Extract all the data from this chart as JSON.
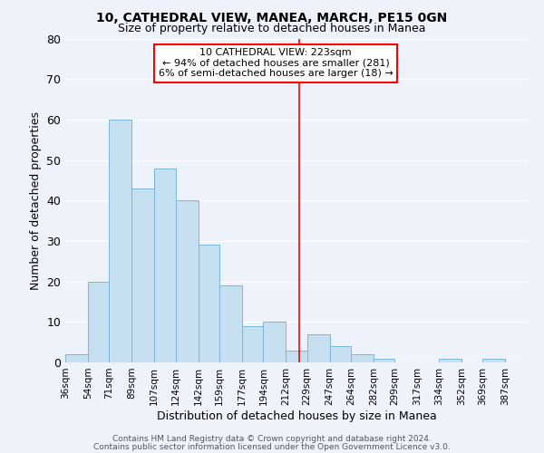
{
  "title": "10, CATHEDRAL VIEW, MANEA, MARCH, PE15 0GN",
  "subtitle": "Size of property relative to detached houses in Manea",
  "xlabel": "Distribution of detached houses by size in Manea",
  "ylabel": "Number of detached properties",
  "bar_color": "#c5dff0",
  "bar_edge_color": "#7ab8d8",
  "background_color": "#eef2fa",
  "grid_color": "white",
  "bin_labels": [
    "36sqm",
    "54sqm",
    "71sqm",
    "89sqm",
    "107sqm",
    "124sqm",
    "142sqm",
    "159sqm",
    "177sqm",
    "194sqm",
    "212sqm",
    "229sqm",
    "247sqm",
    "264sqm",
    "282sqm",
    "299sqm",
    "317sqm",
    "334sqm",
    "352sqm",
    "369sqm",
    "387sqm"
  ],
  "bar_heights": [
    2,
    20,
    60,
    43,
    48,
    40,
    29,
    19,
    9,
    10,
    3,
    7,
    4,
    2,
    1,
    0,
    0,
    1,
    0,
    1,
    0
  ],
  "bin_edges": [
    36,
    54,
    71,
    89,
    107,
    124,
    142,
    159,
    177,
    194,
    212,
    229,
    247,
    264,
    282,
    299,
    317,
    334,
    352,
    369,
    387,
    405
  ],
  "reference_line_x": 223,
  "reference_line_color": "red",
  "ylim": [
    0,
    80
  ],
  "yticks": [
    0,
    10,
    20,
    30,
    40,
    50,
    60,
    70,
    80
  ],
  "annotation_title": "10 CATHEDRAL VIEW: 223sqm",
  "annotation_line1": "← 94% of detached houses are smaller (281)",
  "annotation_line2": "6% of semi-detached houses are larger (18) →",
  "footer_line1": "Contains HM Land Registry data © Crown copyright and database right 2024.",
  "footer_line2": "Contains public sector information licensed under the Open Government Licence v3.0."
}
